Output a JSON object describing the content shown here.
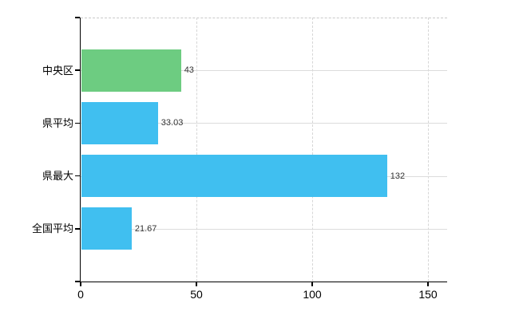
{
  "chart_data": {
    "type": "bar",
    "orientation": "horizontal",
    "title": "",
    "categories": [
      "中央区",
      "県平均",
      "県最大",
      "全国平均"
    ],
    "values": [
      43,
      33.03,
      132,
      21.67
    ],
    "value_labels": [
      "43",
      "33.03",
      "132",
      "21.67"
    ],
    "bar_colors": [
      "#6dcc81",
      "#40bff0",
      "#40bff0",
      "#40bff0"
    ],
    "x_axis": {
      "ticks": [
        0,
        50,
        100,
        150
      ],
      "tick_labels": [
        "0",
        "50",
        "100",
        "150"
      ],
      "range": [
        0,
        158.6
      ]
    },
    "y_axis": {
      "label_position": "left"
    },
    "grid": {
      "vertical": true,
      "horizontal": true,
      "top_border": "dashed"
    },
    "legend": "none",
    "colors": {
      "green_bar": "#6dcc81",
      "blue_bar": "#40bff0",
      "grid_line": "#dcdcdc",
      "axis_line": "#000000",
      "value_label": "#333333",
      "background": "#ffffff"
    }
  }
}
